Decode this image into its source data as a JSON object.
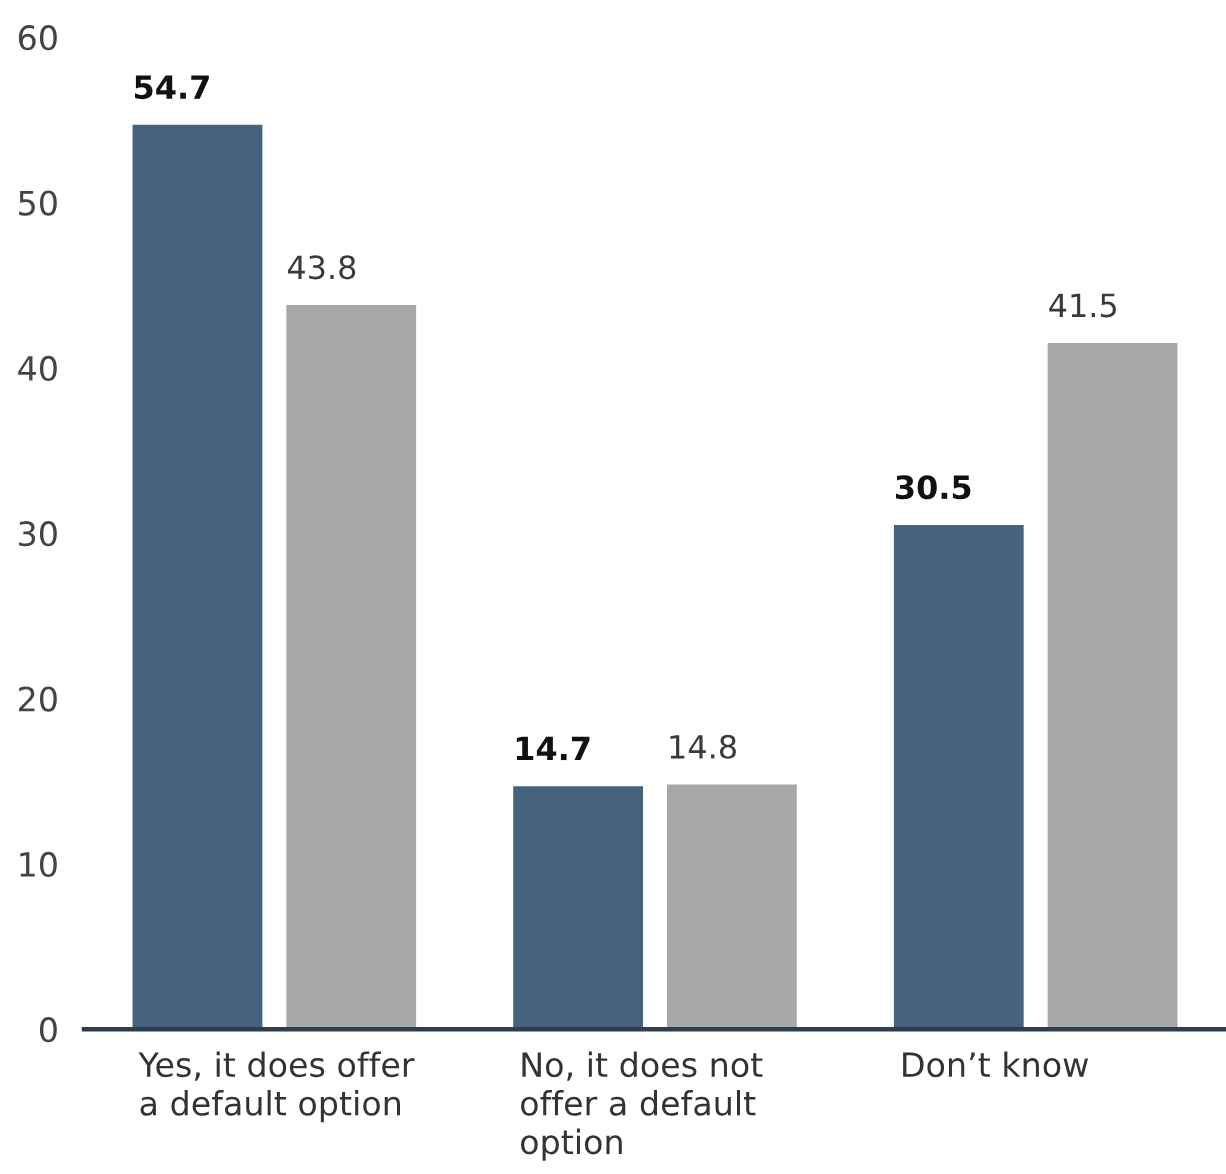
{
  "chart_data": {
    "type": "bar",
    "categories": [
      "Yes, it does offer\na default option",
      "No, it does not\noffer a default\noption",
      "Don’t know"
    ],
    "series": [
      {
        "color": "#46637e",
        "values": [
          54.7,
          14.7,
          30.5
        ]
      },
      {
        "color": "#a7a8aa",
        "values": [
          43.8,
          14.8,
          41.5
        ]
      }
    ],
    "ylim": [
      0,
      60
    ],
    "yticks": [
      0,
      10,
      20,
      30,
      40,
      50,
      60
    ],
    "data_labels": true
  }
}
